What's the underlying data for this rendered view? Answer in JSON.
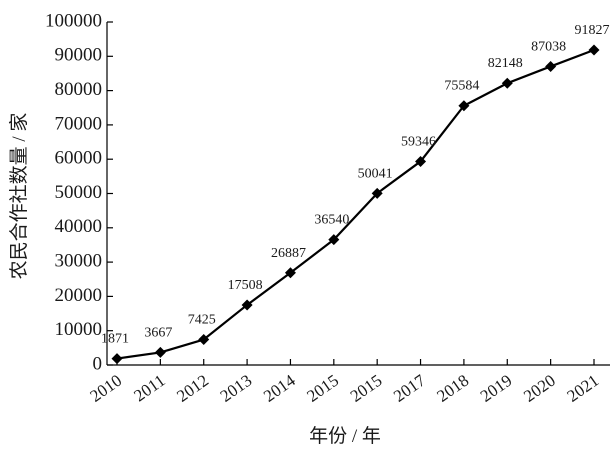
{
  "chart_data": {
    "type": "line",
    "title": "",
    "xlabel": "年份 / 年",
    "ylabel": "农民合作社数量 / 家",
    "categories": [
      "2010",
      "2011",
      "2012",
      "2013",
      "2014",
      "2015",
      "2015",
      "2017",
      "2018",
      "2019",
      "2020",
      "2021"
    ],
    "series": [
      {
        "values": [
          1871,
          3667,
          7425,
          17508,
          26887,
          36540,
          50041,
          59346,
          75584,
          82148,
          87038,
          91827
        ],
        "labels": [
          "1871",
          "3667",
          "7425",
          "17508",
          "26887",
          "36540",
          "50041",
          "59346",
          "75584",
          "82148",
          "87038",
          "91827"
        ],
        "marker": "diamond",
        "color": "#000000"
      }
    ],
    "ylim": [
      0,
      100000
    ],
    "yticks": [
      0,
      10000,
      20000,
      30000,
      40000,
      50000,
      60000,
      70000,
      80000,
      90000,
      100000
    ],
    "ytick_labels": [
      "0",
      "10000",
      "20000",
      "30000",
      "40000",
      "50000",
      "60000",
      "70000",
      "80000",
      "90000",
      "100000"
    ],
    "grid": false,
    "legend": "none"
  }
}
